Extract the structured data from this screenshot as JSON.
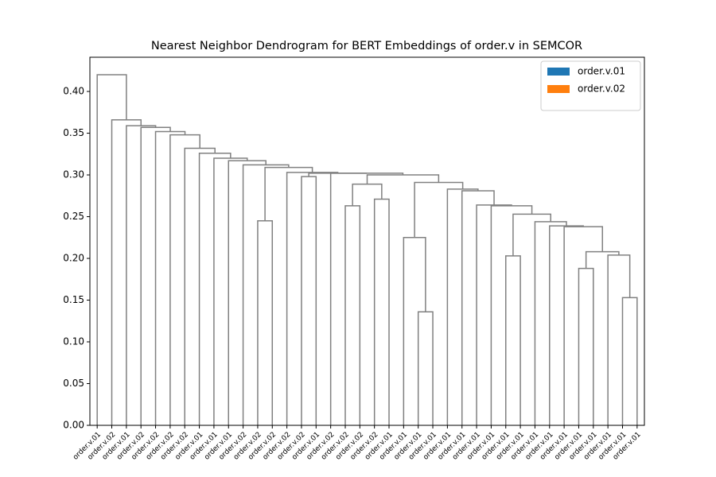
{
  "chart_data": {
    "type": "dendrogram",
    "title": "Nearest Neighbor Dendrogram for BERT Embeddings of order.v in SEMCOR",
    "series": [
      {
        "name": "order.v.01",
        "color": "#1f77b4"
      },
      {
        "name": "order.v.02",
        "color": "#ff7f0e"
      }
    ],
    "link_color": "#808080",
    "legend": "upper right",
    "leaves": [
      "order.v.01",
      "order.v.02",
      "order.v.01",
      "order.v.02",
      "order.v.02",
      "order.v.02",
      "order.v.02",
      "order.v.01",
      "order.v.01",
      "order.v.01",
      "order.v.02",
      "order.v.02",
      "order.v.02",
      "order.v.02",
      "order.v.02",
      "order.v.01",
      "order.v.02",
      "order.v.02",
      "order.v.02",
      "order.v.02",
      "order.v.01",
      "order.v.01",
      "order.v.01",
      "order.v.01",
      "order.v.01",
      "order.v.01",
      "order.v.01",
      "order.v.01",
      "order.v.01",
      "order.v.01",
      "order.v.01",
      "order.v.01",
      "order.v.01",
      "order.v.01",
      "order.v.01",
      "order.v.01",
      "order.v.01",
      "order.v.01"
    ],
    "links": [
      {
        "children": [
          11,
          12
        ],
        "height": 0.245
      },
      {
        "children": [
          14,
          15
        ],
        "height": 0.298
      },
      {
        "children": [
          17,
          18
        ],
        "height": 0.263
      },
      {
        "children": [
          19,
          20
        ],
        "height": 0.271
      },
      {
        "children": [
          22,
          23
        ],
        "height": 0.136
      },
      {
        "children": [
          21,
          42
        ],
        "height": 0.225
      },
      {
        "children": [
          28,
          29
        ],
        "height": 0.203
      },
      {
        "children": [
          33,
          34
        ],
        "height": 0.188
      },
      {
        "children": [
          36,
          37
        ],
        "height": 0.153
      },
      {
        "children": [
          35,
          46
        ],
        "height": 0.204
      },
      {
        "children": [
          45,
          47
        ],
        "height": 0.208
      },
      {
        "children": [
          32,
          48
        ],
        "height": 0.238
      },
      {
        "children": [
          31,
          49
        ],
        "height": 0.239
      },
      {
        "children": [
          30,
          50
        ],
        "height": 0.244
      },
      {
        "children": [
          44,
          51
        ],
        "height": 0.253
      },
      {
        "children": [
          27,
          52
        ],
        "height": 0.263
      },
      {
        "children": [
          26,
          53
        ],
        "height": 0.264
      },
      {
        "children": [
          25,
          54
        ],
        "height": 0.281
      },
      {
        "children": [
          24,
          55
        ],
        "height": 0.283
      },
      {
        "children": [
          43,
          56
        ],
        "height": 0.291
      },
      {
        "children": [
          40,
          41
        ],
        "height": 0.289
      },
      {
        "children": [
          58,
          57
        ],
        "height": 0.3
      },
      {
        "children": [
          16,
          59
        ],
        "height": 0.302
      },
      {
        "children": [
          39,
          60
        ],
        "height": 0.302
      },
      {
        "children": [
          13,
          61
        ],
        "height": 0.303
      },
      {
        "children": [
          38,
          62
        ],
        "height": 0.309
      },
      {
        "children": [
          10,
          63
        ],
        "height": 0.312
      },
      {
        "children": [
          9,
          64
        ],
        "height": 0.317
      },
      {
        "children": [
          8,
          65
        ],
        "height": 0.32
      },
      {
        "children": [
          7,
          66
        ],
        "height": 0.326
      },
      {
        "children": [
          6,
          67
        ],
        "height": 0.332
      },
      {
        "children": [
          5,
          68
        ],
        "height": 0.348
      },
      {
        "children": [
          4,
          69
        ],
        "height": 0.352
      },
      {
        "children": [
          3,
          70
        ],
        "height": 0.357
      },
      {
        "children": [
          2,
          71
        ],
        "height": 0.359
      },
      {
        "children": [
          1,
          72
        ],
        "height": 0.366
      },
      {
        "children": [
          0,
          73
        ],
        "height": 0.42
      }
    ],
    "ylim": [
      0,
      0.441
    ],
    "yticks": [
      {
        "value": 0,
        "label": "0.00"
      },
      {
        "value": 0.05,
        "label": "0.05"
      },
      {
        "value": 0.1,
        "label": "0.10"
      },
      {
        "value": 0.15,
        "label": "0.15"
      },
      {
        "value": 0.2,
        "label": "0.20"
      },
      {
        "value": 0.25,
        "label": "0.25"
      },
      {
        "value": 0.3,
        "label": "0.30"
      },
      {
        "value": 0.35,
        "label": "0.35"
      },
      {
        "value": 0.4,
        "label": "0.40"
      }
    ]
  }
}
